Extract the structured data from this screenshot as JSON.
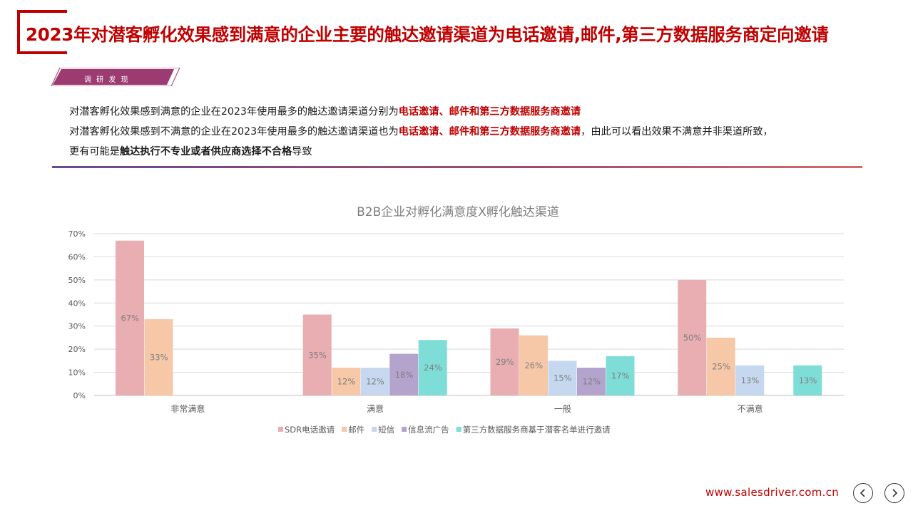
{
  "header": {
    "title": "2023年对潜客孵化效果感到满意的企业主要的触达邀请渠道为电话邀请,邮件,第三方数据服务商定向邀请",
    "tag_label": "调 研 发 现"
  },
  "findings": {
    "line1_prefix": "对潜客孵化效果感到满意的企业在2023年使用最多的触达邀请渠道分别为",
    "line1_highlight": "电话邀请、邮件和第三方数据服务商邀请",
    "line2_prefix": "对潜客孵化效果感到不满意的企业在2023年使用最多的触达邀请渠道也为",
    "line2_highlight": "电话邀请、邮件和第三方数据服务商邀请",
    "line2_suffix": "，由此可以看出效果不满意并非渠道所致，",
    "line3_prefix": "更有可能是",
    "line3_bold": "触达执行不专业或者供应商选择不合格",
    "line3_suffix": "导致"
  },
  "chart_data": {
    "type": "bar",
    "title": "B2B企业对孵化满意度X孵化触达渠道",
    "categories": [
      "非常满意",
      "满意",
      "一般",
      "不满意"
    ],
    "ylim": [
      0,
      70
    ],
    "yticks": [
      "0%",
      "10%",
      "20%",
      "30%",
      "40%",
      "50%",
      "60%",
      "70%"
    ],
    "grid": true,
    "legend_position": "bottom",
    "series": [
      {
        "name": "SDR电话邀请",
        "color": "#e8aeb1",
        "values": [
          67,
          35,
          29,
          50
        ],
        "labels": [
          "67%",
          "35%",
          "29%",
          "50%"
        ]
      },
      {
        "name": "邮件",
        "color": "#f7c8a8",
        "values": [
          33,
          12,
          26,
          25
        ],
        "labels": [
          "33%",
          "12%",
          "26%",
          "25%"
        ]
      },
      {
        "name": "短信",
        "color": "#c5d8ef",
        "values": [
          null,
          12,
          15,
          13
        ],
        "labels": [
          "",
          "12%",
          "15%",
          "13%"
        ]
      },
      {
        "name": "信息流广告",
        "color": "#b3a3cd",
        "values": [
          null,
          18,
          12,
          null
        ],
        "labels": [
          "",
          "18%",
          "12%",
          ""
        ]
      },
      {
        "name": "第三方数据服务商基于潜客名单进行邀请",
        "color": "#7fddd8",
        "values": [
          null,
          24,
          17,
          13
        ],
        "labels": [
          "",
          "24%",
          "17%",
          "13%"
        ]
      }
    ],
    "label_color": "#7f7f7f",
    "axis_text_color": "#595959",
    "grid_color": "#d9d9d9"
  },
  "footer": {
    "url": "www.salesdriver.com.cn",
    "prev_icon": "chevron-left-icon",
    "next_icon": "chevron-right-icon"
  }
}
